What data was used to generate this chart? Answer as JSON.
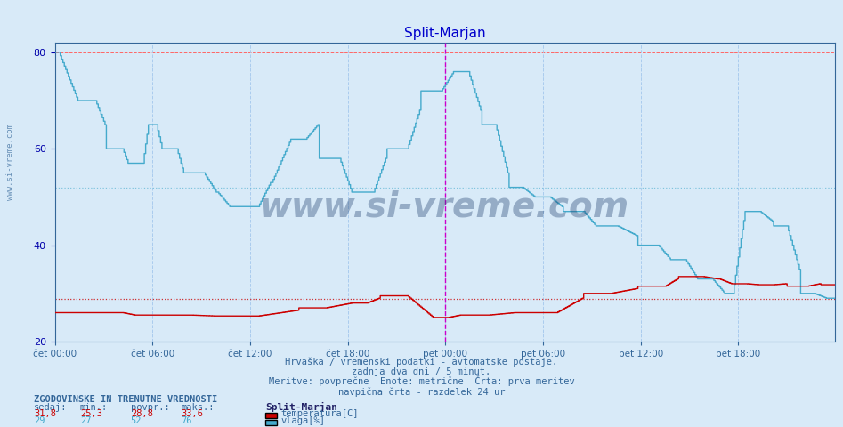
{
  "title": "Split-Marjan",
  "bg_color": "#d8eaf8",
  "plot_bg_color": "#d8eaf8",
  "x_labels": [
    "čet 00:00",
    "čet 06:00",
    "čet 12:00",
    "čet 18:00",
    "pet 00:00",
    "pet 06:00",
    "pet 12:00",
    "pet 18:00"
  ],
  "x_ticks_pos": [
    0,
    72,
    144,
    216,
    288,
    360,
    432,
    504
  ],
  "total_points": 576,
  "ylim": [
    20,
    82
  ],
  "yticks": [
    20,
    40,
    60,
    80
  ],
  "ylabel_color": "#0000aa",
  "grid_color_h": "#ff6666",
  "grid_color_v": "#aaccee",
  "vline_color": "#cc00cc",
  "vline_pos": 288,
  "temp_color": "#cc0000",
  "vlaga_color": "#44aacc",
  "title_color": "#0000cc",
  "title_fontsize": 11,
  "axis_label_color": "#336699",
  "watermark": "www.si-vreme.com",
  "footer_line1": "Hrvaška / vremenski podatki - avtomatske postaje.",
  "footer_line2": "zadnja dva dni / 5 minut.",
  "footer_line3": "Meritve: povprečne  Enote: metrične  Črta: prva meritev",
  "footer_line4": "navpična črta - razdelek 24 ur",
  "stats_header": "ZGODOVINSKE IN TRENUTNE VREDNOSTI",
  "stats_labels": [
    "sedaj:",
    "min.:",
    "povpr.:",
    "maks.:"
  ],
  "stats_temp": [
    31.8,
    25.3,
    28.8,
    33.6
  ],
  "stats_vlaga": [
    29,
    27,
    52,
    76
  ],
  "legend_station": "Split-Marjan",
  "legend_temp": "temperatura[C]",
  "legend_vlaga": "vlaga[%]",
  "temp_color_legend": "#cc0000",
  "vlaga_color_legend": "#44aacc"
}
